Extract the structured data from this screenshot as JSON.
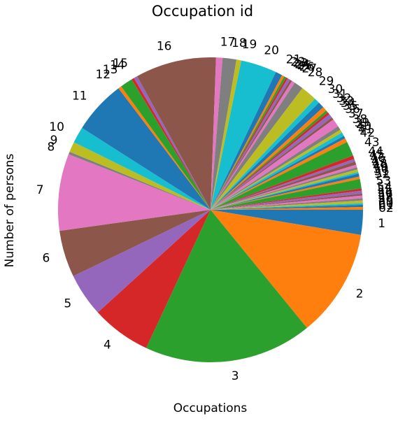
{
  "chart_data": {
    "type": "pie",
    "title": "Occupation id",
    "xlabel": "Occupations",
    "ylabel": "Number of persons",
    "start_angle_deg": 0,
    "direction": "clockwise",
    "labels": [
      "1",
      "2",
      "3",
      "4",
      "5",
      "6",
      "7",
      "8",
      "9",
      "10",
      "11",
      "12",
      "13",
      "14",
      "15",
      "16",
      "17",
      "18",
      "19",
      "20",
      "21",
      "22",
      "23",
      "24",
      "25",
      "26",
      "27",
      "28",
      "29",
      "30",
      "31",
      "32",
      "33",
      "34",
      "35",
      "36",
      "37",
      "38",
      "39",
      "40",
      "41",
      "42",
      "43",
      "44",
      "45",
      "46",
      "47",
      "48",
      "49",
      "50",
      "51",
      "52",
      "53",
      "54",
      "55",
      "56",
      "57",
      "58",
      "59",
      "60",
      "61",
      "62"
    ],
    "values": [
      9.2,
      40,
      62.2,
      22,
      16,
      17.3,
      28.4,
      1,
      3.8,
      6,
      19.7,
      1.2,
      4.6,
      1,
      1.3,
      29.9,
      2.4,
      5.1,
      1.8,
      13.3,
      2.5,
      0.9,
      0.8,
      0.7,
      1,
      0.8,
      1.2,
      3.4,
      6,
      2,
      2.3,
      1.6,
      0.9,
      0.9,
      1.5,
      0.9,
      3,
      1.5,
      1.2,
      1.4,
      1,
      1.5,
      5.4,
      1.3,
      1,
      1.2,
      1,
      0.8,
      1,
      0.6,
      1.1,
      0.9,
      3.5,
      0.8,
      1.1,
      0.7,
      1,
      0.8,
      1,
      0.6,
      0.8,
      1
    ],
    "colors": [
      "#1f77b4",
      "#ff7f0e",
      "#2ca02c",
      "#d62728",
      "#9467bd",
      "#8c564b",
      "#e377c2",
      "#7f7f7f",
      "#bcbd22",
      "#17becf"
    ]
  }
}
